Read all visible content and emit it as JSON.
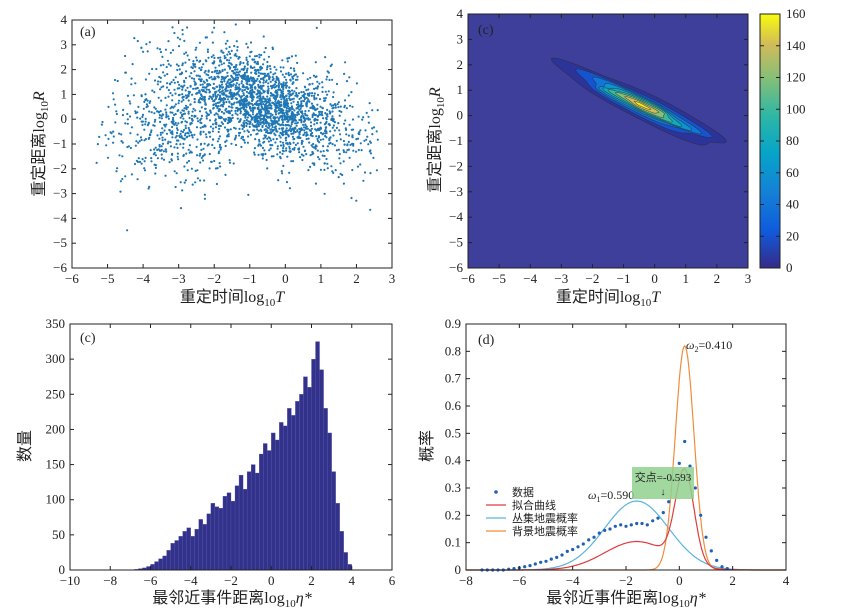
{
  "chart_data": [
    {
      "panel": "(a)",
      "type": "scatter",
      "xlabel_main": "重定时间log",
      "xlabel_sub": "10",
      "xlabel_var": "T",
      "ylabel_main": "重定距离log",
      "ylabel_sub": "10",
      "ylabel_var": "R",
      "xlim": [
        -6,
        3
      ],
      "ylim": [
        -6,
        4
      ],
      "xticks": [
        -6,
        -5,
        -4,
        -3,
        -2,
        -1,
        0,
        1,
        2,
        3
      ],
      "yticks": [
        -6,
        -5,
        -4,
        -3,
        -2,
        -1,
        0,
        1,
        2,
        3,
        4
      ],
      "point_color": "#1f77b4",
      "cloud": {
        "n_points": 2600,
        "main_center": [
          -0.6,
          0.6
        ],
        "spread": [
          1.25,
          1.1
        ],
        "correlation": -0.5,
        "secondary_center": [
          -3.2,
          -0.5
        ]
      }
    },
    {
      "panel": "(c)",
      "type": "heatmap",
      "xlabel_main": "重定时间log",
      "xlabel_sub": "10",
      "xlabel_var": "T",
      "ylabel_main": "重定距离log",
      "ylabel_sub": "10",
      "ylabel_var": "R",
      "xlim": [
        -6,
        3
      ],
      "ylim": [
        -6,
        4
      ],
      "xticks": [
        -6,
        -5,
        -4,
        -3,
        -2,
        -1,
        0,
        1,
        2,
        3
      ],
      "yticks": [
        -6,
        -5,
        -4,
        -3,
        -2,
        -1,
        0,
        1,
        2,
        3,
        4
      ],
      "colorbar": {
        "range": [
          0,
          160
        ],
        "ticks": [
          0,
          20,
          40,
          60,
          80,
          100,
          120,
          140,
          160
        ]
      },
      "contour_levels": [
        5,
        20,
        40,
        60,
        80,
        100,
        120,
        140,
        155
      ],
      "peak": {
        "x": -0.4,
        "y": 0.4,
        "value": 160
      }
    },
    {
      "panel": "(c)",
      "type": "bar",
      "xlabel_main": "最邻近事件距离log",
      "xlabel_sub": "10",
      "xlabel_var": "η*",
      "ylabel": "数量",
      "xlim": [
        -10,
        6
      ],
      "ylim": [
        0,
        350
      ],
      "xticks": [
        -10,
        -8,
        -6,
        -4,
        -2,
        0,
        2,
        4,
        6
      ],
      "yticks": [
        0,
        50,
        100,
        150,
        200,
        250,
        300,
        350
      ],
      "bin_width": 0.2,
      "bin_start": -6.8,
      "bar_color": "#32328a",
      "values": [
        1,
        2,
        3,
        5,
        8,
        12,
        16,
        20,
        28,
        38,
        42,
        48,
        55,
        60,
        48,
        58,
        72,
        65,
        80,
        95,
        90,
        88,
        105,
        110,
        98,
        120,
        135,
        115,
        140,
        150,
        138,
        165,
        180,
        170,
        195,
        185,
        210,
        205,
        230,
        220,
        240,
        250,
        275,
        260,
        300,
        325,
        285,
        230,
        195,
        140,
        95,
        55,
        25,
        8
      ]
    },
    {
      "panel": "(d)",
      "type": "line",
      "xlabel_main": "最邻近事件距离log",
      "xlabel_sub": "10",
      "xlabel_var": "η*",
      "ylabel": "概率",
      "xlim": [
        -8,
        4
      ],
      "ylim": [
        0,
        0.9
      ],
      "xticks": [
        -8,
        -6,
        -4,
        -2,
        0,
        2,
        4
      ],
      "yticks": [
        0,
        0.1,
        0.2,
        0.3,
        0.4,
        0.5,
        0.6,
        0.7,
        0.8,
        0.9
      ],
      "legend": [
        "数据",
        "拟合曲线",
        "丛集地震概率",
        "背景地震概率"
      ],
      "legend_position": "lower-left",
      "series": [
        {
          "name": "数据",
          "color": "#1f5fb4"
        },
        {
          "name": "拟合曲线",
          "color": "#e03c3c"
        },
        {
          "name": "丛集地震概率",
          "color": "#5ab4dc",
          "mean": -1.6,
          "sd": 1.2,
          "weight": 0.59
        },
        {
          "name": "背景地震概率",
          "color": "#f08c3c",
          "mean": 0.2,
          "sd": 0.35,
          "weight": 0.41
        }
      ],
      "data_points": [
        [
          -7.4,
          0.0
        ],
        [
          -7.2,
          0.0
        ],
        [
          -7.0,
          0.0
        ],
        [
          -6.8,
          0.0
        ],
        [
          -6.6,
          0.0
        ],
        [
          -6.4,
          0.003
        ],
        [
          -6.2,
          0.005
        ],
        [
          -6.0,
          0.008
        ],
        [
          -5.8,
          0.012
        ],
        [
          -5.6,
          0.016
        ],
        [
          -5.4,
          0.022
        ],
        [
          -5.2,
          0.028
        ],
        [
          -5.0,
          0.032
        ],
        [
          -4.8,
          0.04
        ],
        [
          -4.6,
          0.046
        ],
        [
          -4.4,
          0.055
        ],
        [
          -4.2,
          0.068
        ],
        [
          -4.0,
          0.075
        ],
        [
          -3.8,
          0.085
        ],
        [
          -3.6,
          0.095
        ],
        [
          -3.4,
          0.11
        ],
        [
          -3.2,
          0.12
        ],
        [
          -3.0,
          0.135
        ],
        [
          -2.8,
          0.145
        ],
        [
          -2.6,
          0.15
        ],
        [
          -2.4,
          0.16
        ],
        [
          -2.2,
          0.165
        ],
        [
          -2.0,
          0.16
        ],
        [
          -1.8,
          0.165
        ],
        [
          -1.6,
          0.17
        ],
        [
          -1.4,
          0.17
        ],
        [
          -1.2,
          0.165
        ],
        [
          -1.0,
          0.18
        ],
        [
          -0.8,
          0.19
        ],
        [
          -0.6,
          0.21
        ],
        [
          -0.4,
          0.25
        ],
        [
          -0.2,
          0.33
        ],
        [
          0.0,
          0.39
        ],
        [
          0.2,
          0.47
        ],
        [
          0.4,
          0.38
        ],
        [
          0.6,
          0.3
        ],
        [
          0.8,
          0.2
        ],
        [
          1.0,
          0.12
        ],
        [
          1.2,
          0.07
        ],
        [
          1.4,
          0.035
        ],
        [
          1.6,
          0.012
        ],
        [
          1.8,
          0.005
        ]
      ],
      "annotations": {
        "omega1_label": "ω",
        "omega1_sub": "1",
        "omega1_value": "=0.590",
        "omega2_label": "ω",
        "omega2_sub": "2",
        "omega2_value": "=0.410",
        "intersection_label": "交点=-0.593",
        "intersection_x": -0.593
      }
    }
  ],
  "colors": {
    "scatter": "#1f77b4",
    "heat_bg": "#3e3f9b",
    "bar": "#32328a"
  }
}
